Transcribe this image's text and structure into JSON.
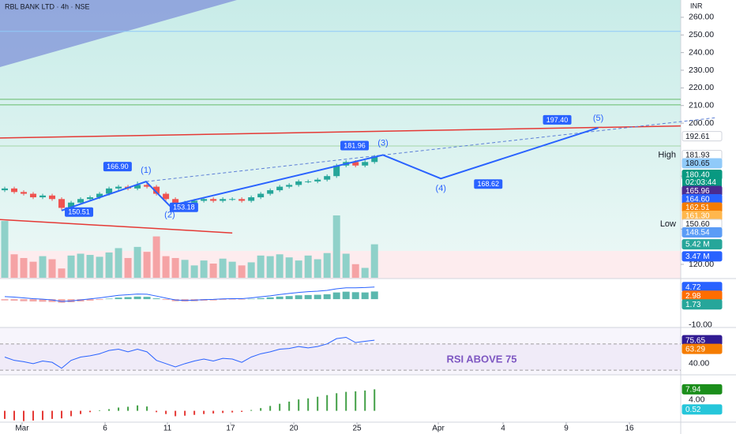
{
  "chart_data": {
    "type": "candlestick",
    "title": "RBL BANK LTD · 4h · NSE",
    "currency": "INR",
    "countdown": "02:03:44",
    "x": [
      0,
      1,
      2,
      3,
      4,
      5,
      6,
      7,
      8,
      9,
      10,
      11,
      12,
      13,
      14,
      15,
      16,
      17,
      18,
      19,
      20,
      21,
      22,
      23,
      24,
      25,
      26,
      27,
      28,
      29,
      30,
      31,
      32,
      33,
      34,
      35,
      36,
      37,
      38,
      39
    ],
    "open": [
      162,
      163,
      161,
      160,
      158,
      159,
      157,
      152,
      155,
      157,
      158,
      160,
      163,
      164,
      163,
      165,
      164,
      160,
      157,
      154,
      155,
      156,
      157,
      156,
      157,
      157,
      156,
      158,
      160,
      162,
      164,
      165,
      167,
      167,
      168,
      170,
      176,
      178,
      176,
      178
    ],
    "high": [
      164,
      164,
      162,
      161,
      160,
      160,
      158,
      156,
      158,
      159,
      161,
      164,
      165,
      165,
      166.9,
      166,
      165,
      161,
      158,
      156,
      157,
      158,
      158,
      158,
      158,
      158,
      159,
      161,
      163,
      165,
      166,
      168,
      168,
      169,
      171,
      177,
      179,
      179,
      179,
      181.96
    ],
    "low": [
      161,
      160,
      159,
      157,
      157,
      156,
      150.51,
      151,
      154,
      156,
      157,
      159,
      162,
      162,
      162,
      163,
      159,
      156,
      153.18,
      153,
      154,
      155,
      155,
      155,
      156,
      155,
      155,
      157,
      159,
      161,
      163,
      164,
      166,
      166,
      167,
      169,
      175,
      175,
      175,
      177
    ],
    "close": [
      163,
      161,
      160,
      158,
      159,
      157,
      152,
      155,
      157,
      158,
      160,
      163,
      164,
      163,
      165,
      164,
      160,
      157,
      154,
      155,
      156,
      157,
      156,
      157,
      157,
      156,
      158,
      160,
      162,
      164,
      165,
      167,
      167,
      168,
      170,
      176,
      178,
      176,
      178,
      181
    ],
    "up_color": "#26a69a",
    "down_color": "#ef5350",
    "xlim": [
      -0.5,
      71.3
    ],
    "xticks": [
      {
        "value": 1.83,
        "label": "Mar"
      },
      {
        "value": 10.58,
        "label": "6"
      },
      {
        "value": 17.16,
        "label": "11"
      },
      {
        "value": 23.82,
        "label": "17"
      },
      {
        "value": 30.49,
        "label": "20"
      },
      {
        "value": 37.15,
        "label": "25"
      },
      {
        "value": 45.73,
        "label": "Apr"
      },
      {
        "value": 52.56,
        "label": "4"
      },
      {
        "value": 59.22,
        "label": "9"
      },
      {
        "value": 65.89,
        "label": "16"
      }
    ],
    "ylim": [
      112.4,
      269.8
    ],
    "yticks": [
      {
        "value": 260,
        "label": "260.00"
      },
      {
        "value": 250,
        "label": "250.00"
      },
      {
        "value": 240,
        "label": "240.00"
      },
      {
        "value": 230,
        "label": "230.00"
      },
      {
        "value": 220,
        "label": "220.00"
      },
      {
        "value": 210,
        "label": "210.00"
      },
      {
        "value": 200,
        "label": "200.00"
      },
      {
        "value": 170,
        "label": "170.00"
      },
      {
        "value": 140,
        "label": "140.00"
      },
      {
        "value": 120,
        "label": "120.00"
      }
    ],
    "levels": [
      {
        "value": 252,
        "color": "#90caf9"
      },
      {
        "value": 213.5,
        "color": "#66bb6a"
      },
      {
        "value": 210.4,
        "color": "#66bb6a"
      },
      {
        "value": 187.1,
        "color": "#a5d6a7"
      }
    ],
    "trendlines": [
      {
        "x": [
          -0.5,
          71.3
        ],
        "values": [
          191.6,
          198.4
        ],
        "color": "#e53935"
      },
      {
        "x": [
          -0.5,
          24
        ],
        "values": [
          145.4,
          137.8
        ],
        "color": "#e53935"
      }
    ],
    "wave": {
      "x": [
        6,
        14.9,
        17.4,
        39.9,
        46,
        62.6
      ],
      "values": [
        150.51,
        166.9,
        153.18,
        181.96,
        168.62,
        197.4
      ],
      "value_labels": [
        "150.51",
        "166.90",
        "153.18",
        "181.96",
        "168.62",
        "197.40"
      ],
      "labels": [
        null,
        "(1)",
        "(2)",
        "(3)",
        "(4)",
        "(5)"
      ],
      "color": "#2962ff"
    },
    "price_labels": [
      {
        "value": 192.61,
        "label": "192.61",
        "color": "#ffffff"
      },
      {
        "value": 181.93,
        "label": "181.93",
        "color": "#ffffff",
        "tag": "High"
      },
      {
        "value": 180.65,
        "label": "180.65",
        "color": "#90caf9"
      },
      {
        "value": 180.4,
        "label": "180.40",
        "color": "#089981"
      },
      {
        "value": 165.96,
        "label": "165.96",
        "color": "#4a2c91"
      },
      {
        "value": 164.6,
        "label": "164.60",
        "color": "#2962ff"
      },
      {
        "value": 162.51,
        "label": "162.51",
        "color": "#f57c00"
      },
      {
        "value": 161.3,
        "label": "161.30",
        "color": "#ffb74d"
      },
      {
        "value": 150.6,
        "label": "150.60",
        "color": "#ffffff",
        "tag": "Low"
      },
      {
        "value": 148.54,
        "label": "148.54",
        "color": "#5b9cf6"
      }
    ],
    "volume": {
      "values": [
        9.2,
        3.8,
        3.2,
        2.6,
        3.5,
        3.0,
        1.5,
        3.6,
        3.9,
        3.7,
        3.4,
        4.1,
        4.8,
        3.2,
        5.0,
        4.2,
        6.7,
        3.5,
        3.2,
        2.9,
        2.0,
        2.8,
        2.3,
        3.1,
        2.6,
        2.0,
        2.5,
        3.6,
        3.5,
        3.8,
        3.3,
        2.8,
        3.6,
        3.0,
        4.0,
        10.1,
        3.9,
        2.2,
        1.6,
        5.42
      ],
      "ylim": [
        0,
        45
      ],
      "labels": [
        {
          "value": 5.42,
          "label": "5.42 M",
          "color": "#26a69a"
        },
        {
          "value": 3.47,
          "label": "3.47 M",
          "color": "#2962ff"
        }
      ]
    },
    "macd": {
      "histogram": [
        -0.5,
        -0.6,
        -0.8,
        -0.9,
        -1,
        -1.1,
        -1.4,
        -1.2,
        -0.9,
        -0.6,
        -0.3,
        0.2,
        0.6,
        0.8,
        1,
        0.9,
        0.3,
        -0.3,
        -0.8,
        -0.9,
        -0.8,
        -0.6,
        -0.5,
        -0.3,
        -0.2,
        -0.2,
        0.1,
        0.4,
        0.7,
        1,
        1.2,
        1.5,
        1.6,
        1.7,
        1.9,
        2.6,
        2.9,
        2.7,
        2.6,
        2.98
      ],
      "line": [
        1,
        0.8,
        0.5,
        0.2,
        0,
        -0.3,
        -0.9,
        -0.7,
        -0.3,
        0.1,
        0.5,
        1,
        1.5,
        1.7,
        2,
        1.9,
        1.2,
        0.4,
        -0.3,
        -0.5,
        -0.4,
        -0.2,
        -0.1,
        0.1,
        0.2,
        0.2,
        0.5,
        0.9,
        1.3,
        1.8,
        2.2,
        2.6,
        2.9,
        3.1,
        3.4,
        4,
        4.4,
        4.4,
        4.5,
        4.72
      ],
      "ylim": [
        -11,
        8
      ],
      "yticks": [
        {
          "value": 0,
          "label": "0.00"
        },
        {
          "value": -10,
          "label": "-10.00"
        }
      ],
      "labels": [
        {
          "value": 4.72,
          "label": "4.72",
          "color": "#2962ff"
        },
        {
          "value": 2.98,
          "label": "2.98",
          "color": "#ff6d00"
        },
        {
          "value": 1.73,
          "label": "1.73",
          "color": "#26a69a"
        }
      ]
    },
    "rsi": {
      "values": [
        50,
        45,
        43,
        40,
        44,
        42,
        33,
        45,
        50,
        52,
        55,
        60,
        62,
        58,
        62,
        58,
        45,
        40,
        35,
        40,
        44,
        47,
        44,
        48,
        47,
        42,
        50,
        55,
        58,
        62,
        63,
        66,
        64,
        66,
        70,
        78,
        80,
        72,
        74,
        75.65
      ],
      "ylim": [
        23,
        95
      ],
      "yticks": [
        {
          "value": 40,
          "label": "40.00"
        }
      ],
      "bands": [
        70,
        30
      ],
      "color": "#2962ff",
      "labels": [
        {
          "value": 75.65,
          "label": "75.65",
          "color": "#311b92"
        },
        {
          "value": 63.29,
          "label": "63.29",
          "color": "#f57c00"
        }
      ],
      "annotation": "RSI ABOVE 75",
      "annotation_color": "#7e57c2"
    },
    "osc": {
      "values": [
        -3,
        -3.5,
        -3.8,
        -3.6,
        -3.4,
        -3,
        -2.8,
        -2,
        -1.2,
        -0.5,
        0.2,
        0.6,
        1.2,
        1.5,
        2,
        1.6,
        -0.5,
        -1.2,
        -2,
        -1.8,
        -1.5,
        -1.2,
        -1,
        -0.8,
        -0.6,
        -0.4,
        0.3,
        1,
        1.8,
        2.6,
        3.4,
        4.2,
        4.6,
        5.2,
        5.8,
        6.5,
        7,
        7.2,
        7.5,
        7.94
      ],
      "ylim": [
        -4.2,
        13.3
      ],
      "yticks": [
        {
          "value": 4,
          "label": "4.00"
        }
      ],
      "up_color": "#43a047",
      "down_color": "#e53935",
      "labels": [
        {
          "value": 7.94,
          "label": "7.94",
          "color": "#1b8e1b"
        },
        {
          "value": 0.52,
          "label": "0.52",
          "color": "#26c6da"
        }
      ]
    }
  }
}
